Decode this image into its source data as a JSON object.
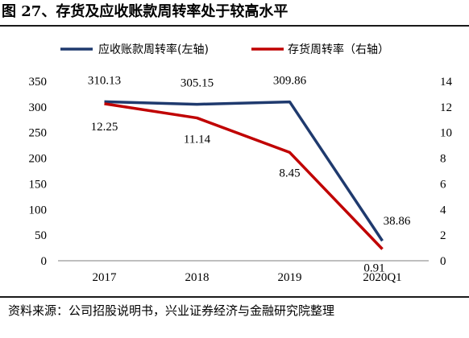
{
  "page": {
    "title": "图 27、存货及应收账款周转率处于较高水平",
    "source": "资料来源：公司招股说明书，兴业证券经济与金融研究院整理"
  },
  "chart_data": {
    "type": "line",
    "categories": [
      "2017",
      "2018",
      "2019",
      "2020Q1"
    ],
    "series": [
      {
        "name": "应收账款周转率(左轴)",
        "axis": "left",
        "color": "#1f3a6e",
        "values": [
          310.13,
          305.15,
          309.86,
          38.86
        ],
        "labels": [
          "310.13",
          "305.15",
          "309.86",
          "38.86"
        ]
      },
      {
        "name": "存货周转率（右轴）",
        "axis": "right",
        "color": "#c00000",
        "values": [
          12.25,
          11.14,
          8.45,
          0.91
        ],
        "labels": [
          "12.25",
          "11.14",
          "8.45",
          "0.91"
        ]
      }
    ],
    "left_axis": {
      "ylim": [
        0,
        350
      ],
      "ticks": [
        "0",
        "50",
        "100",
        "150",
        "200",
        "250",
        "300",
        "350"
      ]
    },
    "right_axis": {
      "ylim": [
        0,
        14
      ],
      "ticks": [
        "0",
        "2",
        "4",
        "6",
        "8",
        "10",
        "12",
        "14"
      ]
    },
    "legend_position": "top",
    "grid": false
  }
}
